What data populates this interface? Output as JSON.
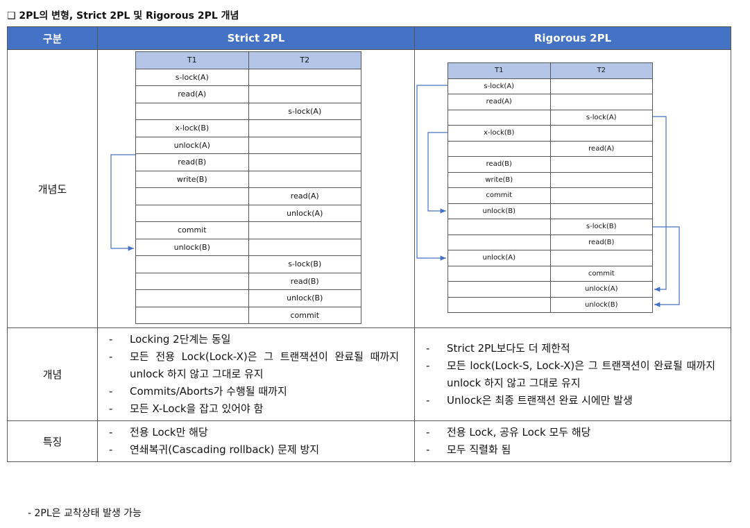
{
  "title": "❑ 2PL의 변형, Strict 2PL 및 Rigorous 2PL 개념",
  "columns": [
    "구분",
    "Strict 2PL",
    "Rigorous 2PL"
  ],
  "rows": {
    "diagram_label": "개념도",
    "concept_label": "개념",
    "feature_label": "특징"
  },
  "strict": {
    "header": [
      "T1",
      "T2"
    ],
    "rows": [
      [
        "s-lock(A)",
        ""
      ],
      [
        "read(A)",
        ""
      ],
      [
        "",
        "s-lock(A)"
      ],
      [
        "x-lock(B)",
        ""
      ],
      [
        "unlock(A)",
        ""
      ],
      [
        "read(B)",
        ""
      ],
      [
        "write(B)",
        ""
      ],
      [
        "",
        "read(A)"
      ],
      [
        "",
        "unlock(A)"
      ],
      [
        "commit",
        ""
      ],
      [
        "unlock(B)",
        ""
      ],
      [
        "",
        "s-lock(B)"
      ],
      [
        "",
        "read(B)"
      ],
      [
        "",
        "unlock(B)"
      ],
      [
        "",
        "commit"
      ]
    ],
    "concept": [
      "Locking 2단계는 동일",
      "모든 전용 Lock(Lock-X)은 그 트랜잭션이 완료될 때까지 unlock 하지 않고 그대로 유지",
      "Commits/Aborts가 수행될 때까지",
      "모든 X-Lock을 잡고 있어야 함"
    ],
    "features": [
      "전용 Lock만 해당",
      "연쇄복귀(Cascading rollback) 문제 방지"
    ]
  },
  "rigorous": {
    "header": [
      "T1",
      "T2"
    ],
    "rows": [
      [
        "s-lock(A)",
        ""
      ],
      [
        "read(A)",
        ""
      ],
      [
        "",
        "s-lock(A)"
      ],
      [
        "x-lock(B)",
        ""
      ],
      [
        "",
        "read(A)"
      ],
      [
        "read(B)",
        ""
      ],
      [
        "write(B)",
        ""
      ],
      [
        "commit",
        ""
      ],
      [
        "unlock(B)",
        ""
      ],
      [
        "",
        "s-lock(B)"
      ],
      [
        "",
        "read(B)"
      ],
      [
        "unlock(A)",
        ""
      ],
      [
        "",
        "commit"
      ],
      [
        "",
        "unlock(A)"
      ],
      [
        "",
        "unlock(B)"
      ]
    ],
    "concept": [
      "Strict 2PL보다도 더 제한적",
      "모든 lock(Lock-S, Lock-X)은 그 트랜잭션이 완료될 때까지 unlock 하지 않고 그대로 유지",
      "Unlock은 최종 트랜잭션 완료 시에만 발생"
    ],
    "features": [
      "전용 Lock, 공유 Lock 모두 해당",
      "모두 직렬화 됨"
    ]
  },
  "footnote": "-  2PL은 교착상태 발생 가능",
  "colors": {
    "header_bg": "#4472c4",
    "subheader_bg": "#b4c6e7",
    "arrow": "#4472c4"
  }
}
